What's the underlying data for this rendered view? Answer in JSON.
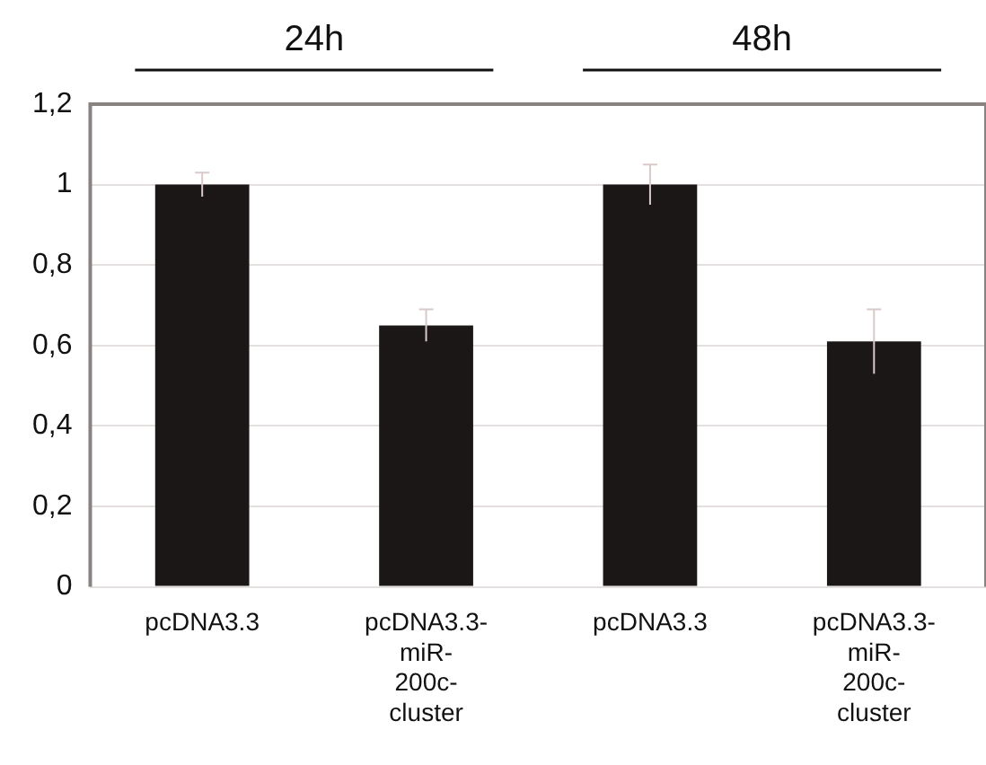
{
  "chart_data": {
    "type": "bar",
    "categories": [
      "pcDNA3.3",
      "pcDNA3.3-miR-200c-cluster",
      "pcDNA3.3",
      "pcDNA3.3-miR-200c-cluster"
    ],
    "values": [
      1.0,
      0.65,
      1.0,
      0.61
    ],
    "errors": [
      0.03,
      0.04,
      0.05,
      0.08
    ],
    "color": "#1a1716",
    "ylim": [
      0,
      1.2
    ],
    "yticks": [
      0,
      {
        "value": 0.2,
        "label": "0,2"
      },
      {
        "value": 0.4,
        "label": "0,4"
      },
      {
        "value": 0.6,
        "label": "0,6"
      },
      {
        "value": 0.8,
        "label": "0,8"
      },
      1,
      {
        "value": 1.2,
        "label": "1,2"
      }
    ],
    "grid": "y",
    "legend": false,
    "annotations": [
      "24h",
      "48h"
    ]
  }
}
